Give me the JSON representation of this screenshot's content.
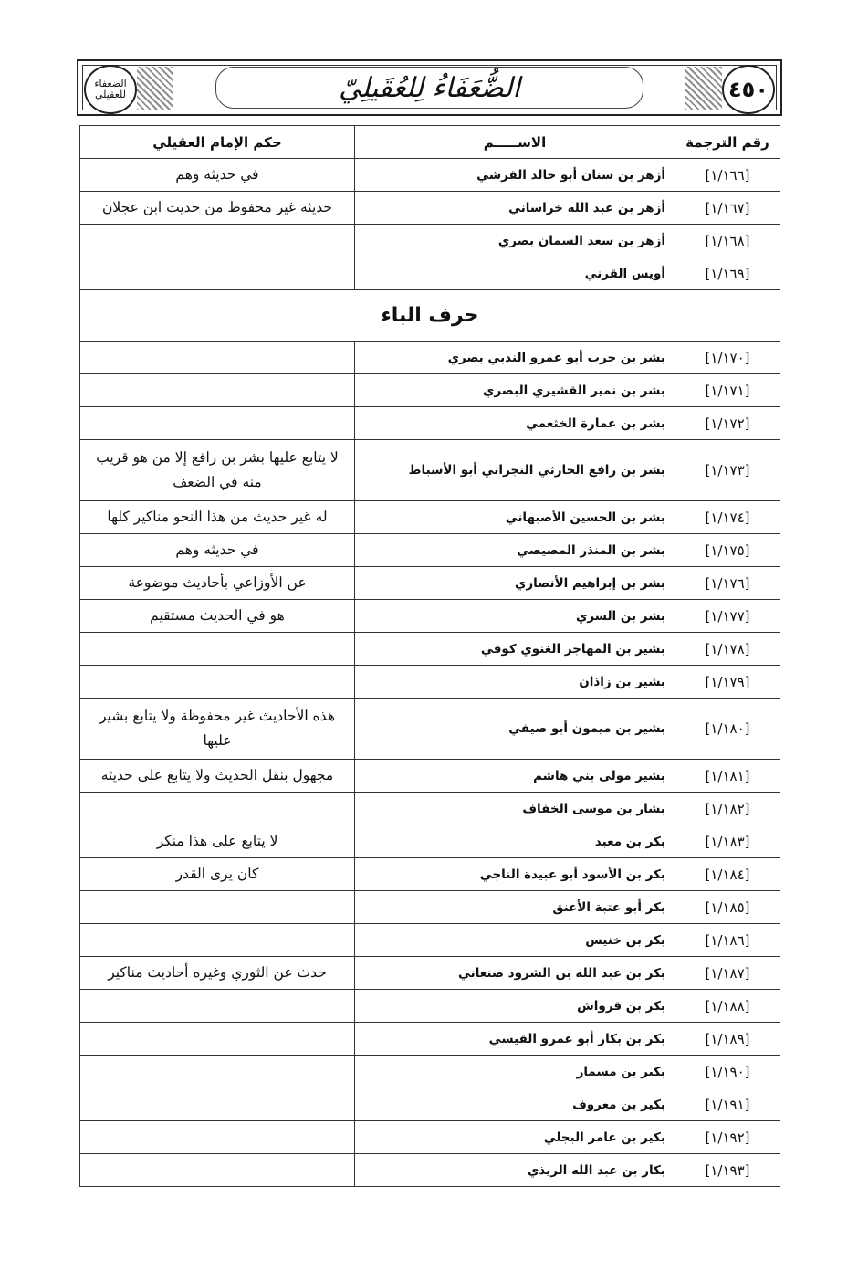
{
  "header": {
    "page_number": "٤٥٠",
    "title": "الضُّعَفَاءُ لِلعُقَيلِيّ",
    "logo_text": "الضعفاء للعقيلي"
  },
  "table": {
    "columns": [
      "رقم الترجمة",
      "الاســـــم",
      "حكم الإمام العقيلي"
    ],
    "rows": [
      {
        "num": "[١/١٦٦]",
        "name": "أزهر بن سنان أبو خالد القرشي",
        "judgment": "في حديثه وهم"
      },
      {
        "num": "[١/١٦٧]",
        "name": "أزهر بن عبد الله خراساني",
        "judgment": "حديثه غير محفوظ من حديث ابن عجلان"
      },
      {
        "num": "[١/١٦٨]",
        "name": "أزهر بن سعد السمان بصري",
        "judgment": ""
      },
      {
        "num": "[١/١٦٩]",
        "name": "أويس القرني",
        "judgment": ""
      },
      {
        "section": "حرف الباء"
      },
      {
        "num": "[١/١٧٠]",
        "name": "بشر بن حرب أبو عمرو الندبي بصري",
        "judgment": ""
      },
      {
        "num": "[١/١٧١]",
        "name": "بشر بن نمير القشيري البصري",
        "judgment": ""
      },
      {
        "num": "[١/١٧٢]",
        "name": "بشر بن عمارة الخثعمي",
        "judgment": ""
      },
      {
        "num": "[١/١٧٣]",
        "name": "بشر بن رافع الحارثي النجراني أبو الأسباط",
        "judgment": "لا يتابع عليها بشر بن رافع إلا من هو قريب منه في الضعف"
      },
      {
        "num": "[١/١٧٤]",
        "name": "بشر بن الحسين الأصبهاني",
        "judgment": "له غير حديث من هذا النحو مناكير كلها"
      },
      {
        "num": "[١/١٧٥]",
        "name": "بشر بن المنذر المصيصي",
        "judgment": "في حديثه وهم"
      },
      {
        "num": "[١/١٧٦]",
        "name": "بشر بن إبراهيم الأنصاري",
        "judgment": "عن الأوزاعي بأحاديث موضوعة"
      },
      {
        "num": "[١/١٧٧]",
        "name": "بشر بن السري",
        "judgment": "هو في الحديث مستقيم"
      },
      {
        "num": "[١/١٧٨]",
        "name": "بشير بن المهاجر الغنوي كوفي",
        "judgment": ""
      },
      {
        "num": "[١/١٧٩]",
        "name": "بشير بن زاذان",
        "judgment": ""
      },
      {
        "num": "[١/١٨٠]",
        "name": "بشير بن ميمون أبو صيفي",
        "judgment": "هذه الأحاديث غير محفوظة ولا يتابع بشير عليها"
      },
      {
        "num": "[١/١٨١]",
        "name": "بشير مولى بني هاشم",
        "judgment": "مجهول بنقل الحديث ولا يتابع على حديثه"
      },
      {
        "num": "[١/١٨٢]",
        "name": "بشار بن موسى الخفاف",
        "judgment": ""
      },
      {
        "num": "[١/١٨٣]",
        "name": "بكر بن معبد",
        "judgment": "لا يتابع على هذا منكر"
      },
      {
        "num": "[١/١٨٤]",
        "name": "بكر بن الأسود أبو عبيدة الناجي",
        "judgment": "كان يرى القدر"
      },
      {
        "num": "[١/١٨٥]",
        "name": "بكر أبو عتبة الأعنق",
        "judgment": ""
      },
      {
        "num": "[١/١٨٦]",
        "name": "بكر بن خنيس",
        "judgment": ""
      },
      {
        "num": "[١/١٨٧]",
        "name": "بكر بن عبد الله بن الشرود صنعاني",
        "judgment": "حدث عن الثوري وغيره أحاديث مناكير"
      },
      {
        "num": "[١/١٨٨]",
        "name": "بكر بن قرواش",
        "judgment": ""
      },
      {
        "num": "[١/١٨٩]",
        "name": "بكر بن بكار أبو عمرو القيسي",
        "judgment": ""
      },
      {
        "num": "[١/١٩٠]",
        "name": "بكير بن مسمار",
        "judgment": ""
      },
      {
        "num": "[١/١٩١]",
        "name": "بكير بن معروف",
        "judgment": ""
      },
      {
        "num": "[١/١٩٢]",
        "name": "بكير بن عامر البجلي",
        "judgment": ""
      },
      {
        "num": "[١/١٩٣]",
        "name": "بكار بن عبد الله الريذي",
        "judgment": ""
      }
    ]
  }
}
